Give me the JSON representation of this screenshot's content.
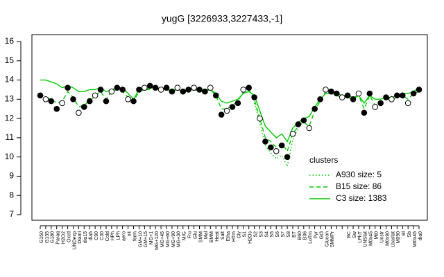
{
  "chart_data": {
    "type": "line",
    "title": "yugG [3226933,3227433,-1]",
    "categories": [
      "G150",
      "G135",
      "G180",
      "Paraq",
      "H2O2",
      "Oxctl",
      "UNDexp",
      "Diami",
      "dia15",
      "dia5",
      "C90",
      "C30",
      "Cold",
      "HPh",
      "LPh",
      "aero",
      "nit",
      "ferm",
      "GM+10",
      "GM+15",
      "MG+1",
      "MG+120",
      "MG+45",
      "MG+60",
      "MG+90",
      "MG+30",
      "M/G",
      "Fru",
      "Glu",
      "SMM",
      "Mal",
      "BMM",
      "Heat",
      "Salt",
      "Etha",
      "HTm",
      "Gly",
      "S1",
      "H2Os",
      "S2",
      "S3",
      "S4",
      "S5",
      "S6",
      "S7",
      "S8",
      "BT",
      "B60",
      "B36",
      "LoTm",
      "Pyr",
      "Gt3",
      "Glucon",
      "SMMPr",
      null,
      null,
      "BC",
      "Sw",
      "LPhT",
      "UNStat",
      "M0x45",
      "Mt0",
      "Unstr",
      "M0x90",
      "Lbastat",
      "M090",
      "Bl",
      "Sb",
      "Mt0x45",
      "dia0"
    ],
    "values": [
      13.2,
      13.0,
      12.9,
      12.5,
      12.8,
      13.6,
      13.0,
      12.3,
      12.6,
      12.9,
      13.2,
      13.5,
      12.9,
      13.4,
      13.6,
      13.5,
      13.0,
      12.9,
      13.5,
      13.6,
      13.7,
      13.6,
      13.5,
      13.6,
      13.4,
      13.6,
      13.4,
      13.5,
      13.6,
      13.5,
      13.4,
      13.6,
      13.2,
      12.2,
      12.4,
      12.6,
      12.8,
      13.5,
      13.6,
      13.1,
      12.0,
      10.8,
      10.5,
      10.3,
      10.6,
      10.0,
      11.2,
      11.7,
      11.9,
      11.5,
      12.5,
      13.0,
      13.5,
      13.4,
      13.3,
      13.1,
      13.2,
      13.0,
      13.3,
      12.3,
      13.3,
      12.6,
      12.8,
      13.1,
      13.0,
      13.2,
      13.2,
      12.8,
      13.3,
      13.5
    ],
    "point_color": "#000000",
    "series": [
      {
        "name": "A930 size: 5",
        "color": "#00cc00",
        "dash": "dotted",
        "values": [
          null,
          null,
          null,
          null,
          null,
          null,
          null,
          null,
          null,
          null,
          null,
          null,
          null,
          null,
          null,
          null,
          null,
          null,
          null,
          null,
          null,
          null,
          null,
          null,
          null,
          null,
          null,
          null,
          null,
          null,
          null,
          null,
          null,
          null,
          null,
          null,
          null,
          null,
          null,
          12.8,
          11.8,
          10.6,
          10.2,
          9.9,
          10.1,
          9.5,
          10.9,
          11.5,
          null,
          null,
          null,
          null,
          null,
          null,
          null,
          null,
          null,
          null,
          null,
          null,
          null,
          null,
          null,
          null,
          null,
          null,
          null,
          null,
          null,
          null
        ]
      },
      {
        "name": "B15 size: 86",
        "color": "#00cc00",
        "dash": "dashed",
        "values": [
          13.3,
          13.1,
          13.0,
          12.8,
          12.9,
          13.4,
          13.1,
          12.6,
          12.7,
          12.9,
          13.2,
          13.4,
          13.0,
          13.4,
          13.5,
          13.4,
          13.1,
          12.9,
          13.4,
          13.5,
          13.5,
          13.5,
          13.4,
          13.5,
          13.4,
          13.5,
          13.4,
          13.4,
          13.5,
          13.4,
          13.4,
          13.5,
          13.2,
          12.5,
          12.5,
          12.7,
          12.9,
          13.4,
          13.5,
          13.0,
          12.0,
          11.0,
          10.8,
          10.5,
          10.7,
          10.3,
          11.2,
          11.6,
          11.8,
          11.6,
          12.4,
          12.9,
          13.4,
          13.3,
          13.2,
          13.1,
          13.1,
          13.0,
          13.2,
          12.5,
          13.2,
          12.7,
          12.8,
          13.0,
          13.0,
          13.1,
          13.2,
          13.0,
          13.3,
          13.4
        ]
      },
      {
        "name": "C3 size: 1383",
        "color": "#00cc00",
        "dash": "solid",
        "values": [
          14.0,
          14.0,
          13.9,
          13.8,
          13.6,
          13.7,
          13.6,
          13.4,
          13.4,
          13.5,
          13.5,
          13.6,
          13.4,
          13.5,
          13.6,
          13.6,
          13.3,
          13.0,
          13.5,
          13.5,
          13.6,
          13.6,
          13.5,
          13.5,
          13.5,
          13.5,
          13.4,
          13.5,
          13.5,
          13.5,
          13.5,
          13.5,
          13.3,
          12.9,
          12.8,
          12.9,
          13.0,
          13.3,
          13.4,
          13.2,
          12.4,
          11.6,
          11.3,
          11.0,
          11.2,
          10.8,
          11.5,
          11.8,
          12.0,
          12.1,
          12.6,
          13.0,
          13.3,
          13.3,
          13.3,
          13.2,
          13.2,
          13.1,
          13.2,
          12.8,
          13.2,
          13.0,
          13.0,
          13.1,
          13.1,
          13.2,
          13.3,
          13.3,
          13.4,
          13.6
        ]
      }
    ],
    "legend_title": "clusters",
    "ylim": [
      7,
      16
    ],
    "yticks": [
      7,
      8,
      9,
      10,
      11,
      12,
      13,
      14,
      15,
      16
    ]
  }
}
